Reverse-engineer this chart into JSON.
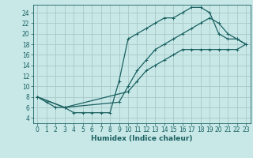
{
  "title": "",
  "xlabel": "Humidex (Indice chaleur)",
  "background_color": "#c8e8e8",
  "grid_color": "#a8c8c8",
  "line_color": "#1a6060",
  "xlim": [
    -0.5,
    23.5
  ],
  "ylim": [
    3,
    25.5
  ],
  "xticks": [
    0,
    1,
    2,
    3,
    4,
    5,
    6,
    7,
    8,
    9,
    10,
    11,
    12,
    13,
    14,
    15,
    16,
    17,
    18,
    19,
    20,
    21,
    22,
    23
  ],
  "yticks": [
    4,
    6,
    8,
    10,
    12,
    14,
    16,
    18,
    20,
    22,
    24
  ],
  "line1_x": [
    0,
    1,
    2,
    3,
    4,
    5,
    6,
    7,
    8,
    9,
    10,
    11,
    12,
    13,
    14,
    15,
    16,
    17,
    18,
    19,
    20,
    21,
    22,
    23
  ],
  "line1_y": [
    8,
    7,
    6,
    6,
    5,
    5,
    5,
    5,
    5,
    11,
    19,
    20,
    21,
    22,
    23,
    23,
    24,
    25,
    25,
    24,
    20,
    19,
    19,
    18
  ],
  "line2_x": [
    0,
    3,
    9,
    10,
    11,
    12,
    13,
    14,
    15,
    16,
    17,
    18,
    19,
    20,
    21,
    22,
    23
  ],
  "line2_y": [
    8,
    6,
    7,
    10,
    13,
    15,
    17,
    18,
    19,
    20,
    21,
    22,
    23,
    22,
    20,
    19,
    18
  ],
  "line3_x": [
    0,
    3,
    10,
    11,
    12,
    13,
    14,
    15,
    16,
    17,
    18,
    19,
    20,
    21,
    22,
    23
  ],
  "line3_y": [
    8,
    6,
    9,
    11,
    13,
    14,
    15,
    16,
    17,
    17,
    17,
    17,
    17,
    17,
    17,
    18
  ],
  "tick_fontsize": 5.5,
  "xlabel_fontsize": 6.5,
  "marker_size": 3,
  "linewidth": 0.9
}
